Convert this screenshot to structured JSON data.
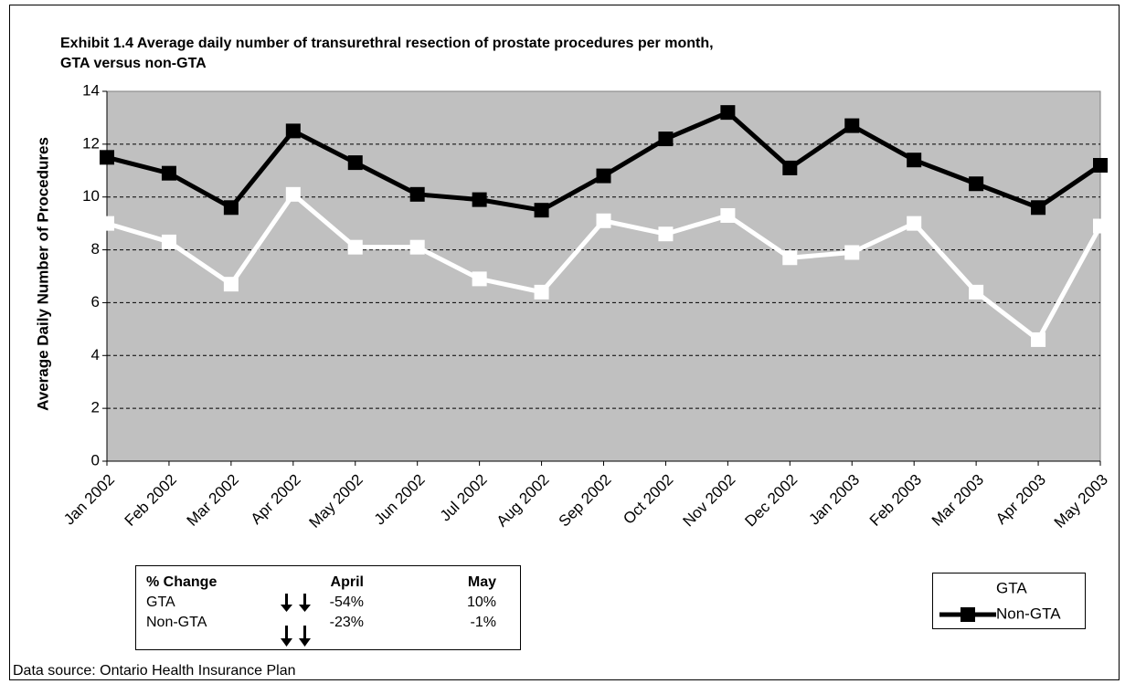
{
  "chart_data": {
    "type": "line",
    "title": [
      "Exhibit 1.4 Average daily number of transurethral resection of prostate procedures per month,",
      "GTA versus non-GTA"
    ],
    "y_label": "Average Daily Number of Procedures",
    "categories": [
      "Jan 2002",
      "Feb 2002",
      "Mar 2002",
      "Apr 2002",
      "May 2002",
      "Jun 2002",
      "Jul 2002",
      "Aug 2002",
      "Sep 2002",
      "Oct 2002",
      "Nov 2002",
      "Dec 2002",
      "Jan 2003",
      "Feb 2003",
      "Mar 2003",
      "Apr 2003",
      "May 2003"
    ],
    "series": [
      {
        "name": "GTA",
        "color": "#ffffff",
        "values": [
          9.0,
          8.3,
          6.7,
          10.1,
          8.1,
          8.1,
          6.9,
          6.4,
          9.1,
          8.6,
          9.3,
          7.7,
          7.9,
          9.0,
          6.4,
          4.6,
          8.9
        ]
      },
      {
        "name": "Non-GTA",
        "color": "#000000",
        "values": [
          11.5,
          10.9,
          9.6,
          12.5,
          11.3,
          10.1,
          9.9,
          9.5,
          10.8,
          12.2,
          13.2,
          11.1,
          12.7,
          11.4,
          10.5,
          9.6,
          11.2
        ]
      }
    ],
    "ylim": [
      0,
      14
    ],
    "yticks": [
      0,
      2,
      4,
      6,
      8,
      10,
      12,
      14
    ],
    "grid": true,
    "legend": "bottom-right",
    "table": {
      "header": [
        "% Change",
        "April",
        "May"
      ],
      "rows": [
        [
          "GTA",
          "-54%",
          "10%"
        ],
        [
          "Non-GTA",
          "-23%",
          "-1%"
        ]
      ]
    },
    "source": "Data source: Ontario Health Insurance Plan"
  }
}
